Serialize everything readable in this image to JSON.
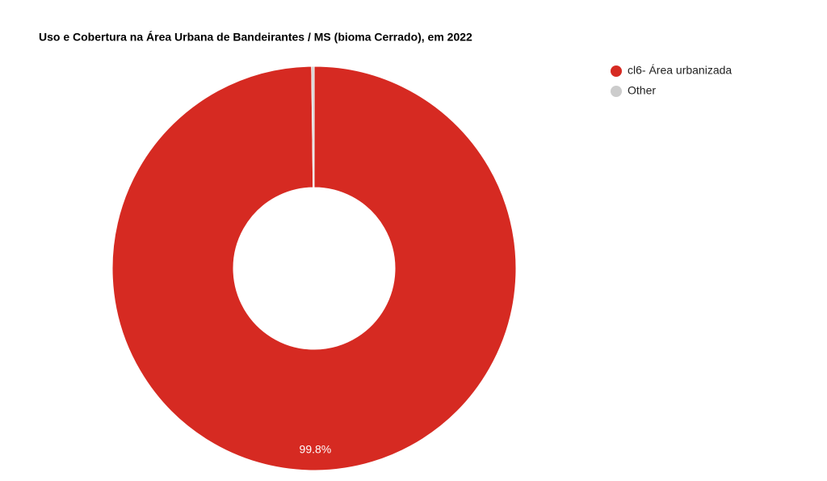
{
  "chart_data": {
    "type": "donut",
    "title": "Uso e Cobertura na Área Urbana de Bandeirantes / MS (bioma Cerrado), em 2022",
    "categories": [
      "cl6- Área urbanizada",
      "Other"
    ],
    "values": [
      99.8,
      0.2
    ],
    "value_labels": [
      "99.8%",
      null
    ],
    "colors": [
      "#d62a22",
      "#cccccc"
    ],
    "legend": "right"
  }
}
